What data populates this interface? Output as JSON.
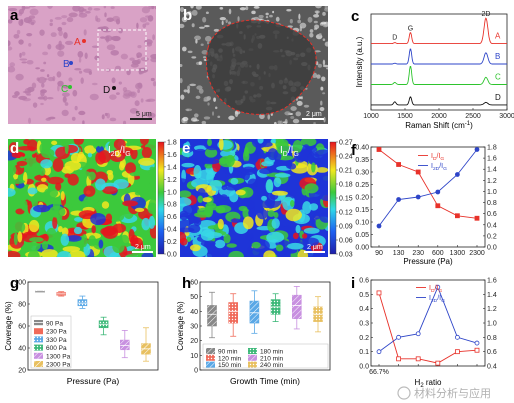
{
  "colors": {
    "red": "#e8322a",
    "blue": "#2e45c8",
    "green": "#2ec42e",
    "black": "#111111",
    "micro_bg": "#d9a2c6",
    "micro_dot": "#b77aa8",
    "sem_bg": "#5a5a5a",
    "jet_red": "#e8141e",
    "jet_yellow": "#f2e81e",
    "jet_green": "#3cc93c",
    "jet_cyan": "#38d8e6",
    "jet_blue": "#1e34d8"
  },
  "panels": {
    "a": {
      "label": "a",
      "scale_bar": "5 μm",
      "points": [
        {
          "name": "A",
          "color": "red"
        },
        {
          "name": "B",
          "color": "blue"
        },
        {
          "name": "C",
          "color": "green"
        },
        {
          "name": "D",
          "color": "black"
        }
      ]
    },
    "b": {
      "label": "b",
      "scale_bar": "2 μm"
    },
    "d": {
      "label": "d",
      "title": "I",
      "title_sub": "2D",
      "title_tail": "/I",
      "title_sub2": "G",
      "scale_bar": "2 μm",
      "colorbar": [
        "1.8",
        "1.6",
        "1.4",
        "1.2",
        "1.0",
        "0.8",
        "0.6",
        "0.4",
        "0.2",
        "0.0"
      ]
    },
    "e": {
      "label": "e",
      "title": "I",
      "title_sub": "D",
      "title_tail": "/I",
      "title_sub2": "G",
      "scale_bar": "2 μm",
      "colorbar": [
        "0.27",
        "0.24",
        "0.21",
        "0.18",
        "0.15",
        "0.12",
        "0.09",
        "0.06",
        "0.03"
      ]
    }
  },
  "chart_data": [
    {
      "id": "c",
      "label": "c",
      "type": "line",
      "xlabel": "Raman Shift (cm",
      "xlabel_sup": "-1",
      "xlabel_tail": ")",
      "ylabel": "Intensity (a.u.)",
      "xlim": [
        1000,
        3000
      ],
      "xticks": [
        "1000",
        "1500",
        "2000",
        "2500",
        "3000"
      ],
      "peak_labels": [
        "D",
        "G",
        "2D"
      ],
      "series": [
        {
          "name": "A",
          "color": "red",
          "offset": 3.0,
          "peaks": [
            [
              1350,
              0.05
            ],
            [
              1580,
              0.55
            ],
            [
              2690,
              1.25
            ]
          ]
        },
        {
          "name": "B",
          "color": "blue",
          "offset": 2.0,
          "peaks": [
            [
              1350,
              0.04
            ],
            [
              1580,
              0.75
            ],
            [
              2690,
              0.55
            ]
          ]
        },
        {
          "name": "C",
          "color": "green",
          "offset": 1.0,
          "peaks": [
            [
              1350,
              0.1
            ],
            [
              1580,
              0.9
            ],
            [
              2690,
              0.35
            ]
          ]
        },
        {
          "name": "D",
          "color": "black",
          "offset": 0.0,
          "peaks": [
            [
              1350,
              0.15
            ],
            [
              1580,
              0.4
            ],
            [
              2690,
              0.12
            ]
          ]
        }
      ]
    },
    {
      "id": "f",
      "label": "f",
      "type": "line",
      "categories": [
        "90",
        "130",
        "230",
        "600",
        "1300",
        "2300"
      ],
      "xlabel": "Pressure (Pa)",
      "ylim_left": [
        0,
        0.4
      ],
      "yticks_left": [
        "0.00",
        "0.05",
        "0.10",
        "0.15",
        "0.20",
        "0.25",
        "0.30",
        "0.35",
        "0.40"
      ],
      "ylim_right": [
        0,
        2.0
      ],
      "yticks_right": [
        "0.0",
        "0.2",
        "0.4",
        "0.6",
        "0.8",
        "1.0",
        "1.2",
        "1.4",
        "1.6",
        "1.8"
      ],
      "legend": [
        {
          "text": "I",
          "sub": "D",
          "tail": "/I",
          "sub2": "G",
          "color": "red"
        },
        {
          "text": "I",
          "sub": "2D",
          "tail": "/I",
          "sub2": "G",
          "color": "blue"
        }
      ],
      "series": [
        {
          "color": "red",
          "axis": "left",
          "values": [
            0.39,
            0.33,
            0.3,
            0.165,
            0.125,
            0.115
          ]
        },
        {
          "color": "blue",
          "axis": "right",
          "values": [
            0.42,
            0.95,
            1.0,
            1.1,
            1.45,
            1.95
          ]
        }
      ]
    },
    {
      "id": "g",
      "label": "g",
      "type": "box",
      "ylabel": "Coverage (%)",
      "xlabel": "Pressure (Pa)",
      "ylim": [
        10,
        110
      ],
      "yticks": [
        "20",
        "40",
        "60",
        "80",
        "100"
      ],
      "legend": [
        "90 Pa",
        "230 Pa",
        "330 Pa",
        "600 Pa",
        "1300 Pa",
        "2300 Pa"
      ],
      "series": [
        {
          "color": "#888888",
          "pattern": "hline",
          "min": 100,
          "q1": 100,
          "median": 100,
          "q3": 100,
          "max": 100
        },
        {
          "color": "#f06a5a",
          "pattern": "solid",
          "min": 94,
          "q1": 95,
          "median": 96.5,
          "q3": 98,
          "max": 99
        },
        {
          "color": "#5aa8e6",
          "pattern": "dot",
          "min": 80,
          "q1": 83,
          "median": 86,
          "q3": 90,
          "max": 94
        },
        {
          "color": "#3cb878",
          "pattern": "dot",
          "min": 50,
          "q1": 58,
          "median": 62,
          "q3": 66,
          "max": 70
        },
        {
          "color": "#c890e0",
          "pattern": "hatch",
          "min": 24,
          "q1": 33,
          "median": 38,
          "q3": 44,
          "max": 55
        },
        {
          "color": "#e8c060",
          "pattern": "hatch",
          "min": 20,
          "q1": 28,
          "median": 34,
          "q3": 40,
          "max": 58
        }
      ]
    },
    {
      "id": "h",
      "label": "h",
      "type": "box",
      "ylabel": "Coverage (%)",
      "xlabel": "Growth Time (min)",
      "ylim": [
        0,
        60
      ],
      "yticks": [
        "0",
        "10",
        "20",
        "30",
        "40",
        "50",
        "60"
      ],
      "legend": [
        "90 min",
        "120 min",
        "150 min",
        "180 min",
        "210 min",
        "240 min"
      ],
      "series": [
        {
          "color": "#888888",
          "pattern": "hatch",
          "min": 22,
          "q1": 30,
          "median": 38,
          "q3": 44,
          "max": 53
        },
        {
          "color": "#f06a5a",
          "pattern": "dot",
          "min": 23,
          "q1": 32,
          "median": 40,
          "q3": 46,
          "max": 52
        },
        {
          "color": "#5aa8e6",
          "pattern": "hatch",
          "min": 25,
          "q1": 32,
          "median": 39,
          "q3": 47,
          "max": 54
        },
        {
          "color": "#3cb878",
          "pattern": "dot",
          "min": 33,
          "q1": 38,
          "median": 43,
          "q3": 48,
          "max": 52
        },
        {
          "color": "#c890e0",
          "pattern": "hatch",
          "min": 28,
          "q1": 35,
          "median": 44,
          "q3": 51,
          "max": 57
        },
        {
          "color": "#e8c060",
          "pattern": "dot",
          "min": 26,
          "q1": 33,
          "median": 38,
          "q3": 43,
          "max": 50
        }
      ]
    },
    {
      "id": "i",
      "label": "i",
      "type": "line",
      "categories": [
        "66.7%",
        "",
        "",
        "",
        "",
        ""
      ],
      "xlabel": "H",
      "xlabel_sub": "2",
      "xlabel_tail": " ratio",
      "ylim_left": [
        0,
        0.6
      ],
      "yticks_left": [
        "0.0",
        "0.1",
        "0.2",
        "0.3",
        "0.4",
        "0.5",
        "0.6"
      ],
      "ylim_right": [
        0.4,
        1.6
      ],
      "yticks_right": [
        "0.4",
        "0.6",
        "0.8",
        "1.0",
        "1.2",
        "1.4",
        "1.6"
      ],
      "legend": [
        {
          "text": "I",
          "sub": "D",
          "tail": "/I",
          "sub2": "G",
          "color": "red"
        },
        {
          "text": "I",
          "sub": "2D",
          "tail": "/I",
          "sub2": "G",
          "color": "blue"
        }
      ],
      "series": [
        {
          "color": "red",
          "axis": "left",
          "values": [
            0.51,
            0.05,
            0.05,
            0.02,
            0.1,
            0.11
          ]
        },
        {
          "color": "blue",
          "axis": "right",
          "values": [
            0.6,
            0.8,
            0.85,
            1.5,
            0.8,
            0.72
          ]
        }
      ]
    }
  ],
  "watermark": "材料分析与应用"
}
